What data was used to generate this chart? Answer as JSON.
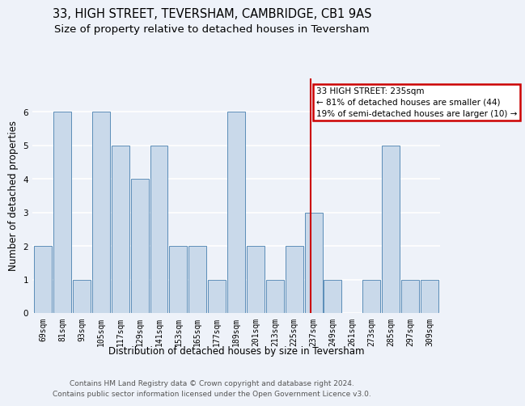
{
  "title": "33, HIGH STREET, TEVERSHAM, CAMBRIDGE, CB1 9AS",
  "subtitle": "Size of property relative to detached houses in Teversham",
  "xlabel": "Distribution of detached houses by size in Teversham",
  "ylabel": "Number of detached properties",
  "footer_line1": "Contains HM Land Registry data © Crown copyright and database right 2024.",
  "footer_line2": "Contains public sector information licensed under the Open Government Licence v3.0.",
  "bins": [
    "69sqm",
    "81sqm",
    "93sqm",
    "105sqm",
    "117sqm",
    "129sqm",
    "141sqm",
    "153sqm",
    "165sqm",
    "177sqm",
    "189sqm",
    "201sqm",
    "213sqm",
    "225sqm",
    "237sqm",
    "249sqm",
    "261sqm",
    "273sqm",
    "285sqm",
    "297sqm",
    "309sqm"
  ],
  "values": [
    2,
    6,
    1,
    6,
    5,
    4,
    5,
    2,
    2,
    1,
    6,
    2,
    1,
    2,
    3,
    1,
    0,
    1,
    5,
    1,
    1
  ],
  "bar_color": "#c9d9ea",
  "bar_edge_color": "#5b8db8",
  "subject_line_color": "#cc0000",
  "annotation_text": "33 HIGH STREET: 235sqm\n← 81% of detached houses are smaller (44)\n19% of semi-detached houses are larger (10) →",
  "annotation_box_color": "#cc0000",
  "ylim": [
    0,
    7
  ],
  "yticks": [
    0,
    1,
    2,
    3,
    4,
    5,
    6,
    7
  ],
  "background_color": "#eef2f9",
  "grid_color": "#ffffff",
  "title_fontsize": 10.5,
  "subtitle_fontsize": 9.5,
  "axis_label_fontsize": 8.5,
  "tick_fontsize": 7,
  "footer_fontsize": 6.5,
  "annotation_fontsize": 7.5
}
